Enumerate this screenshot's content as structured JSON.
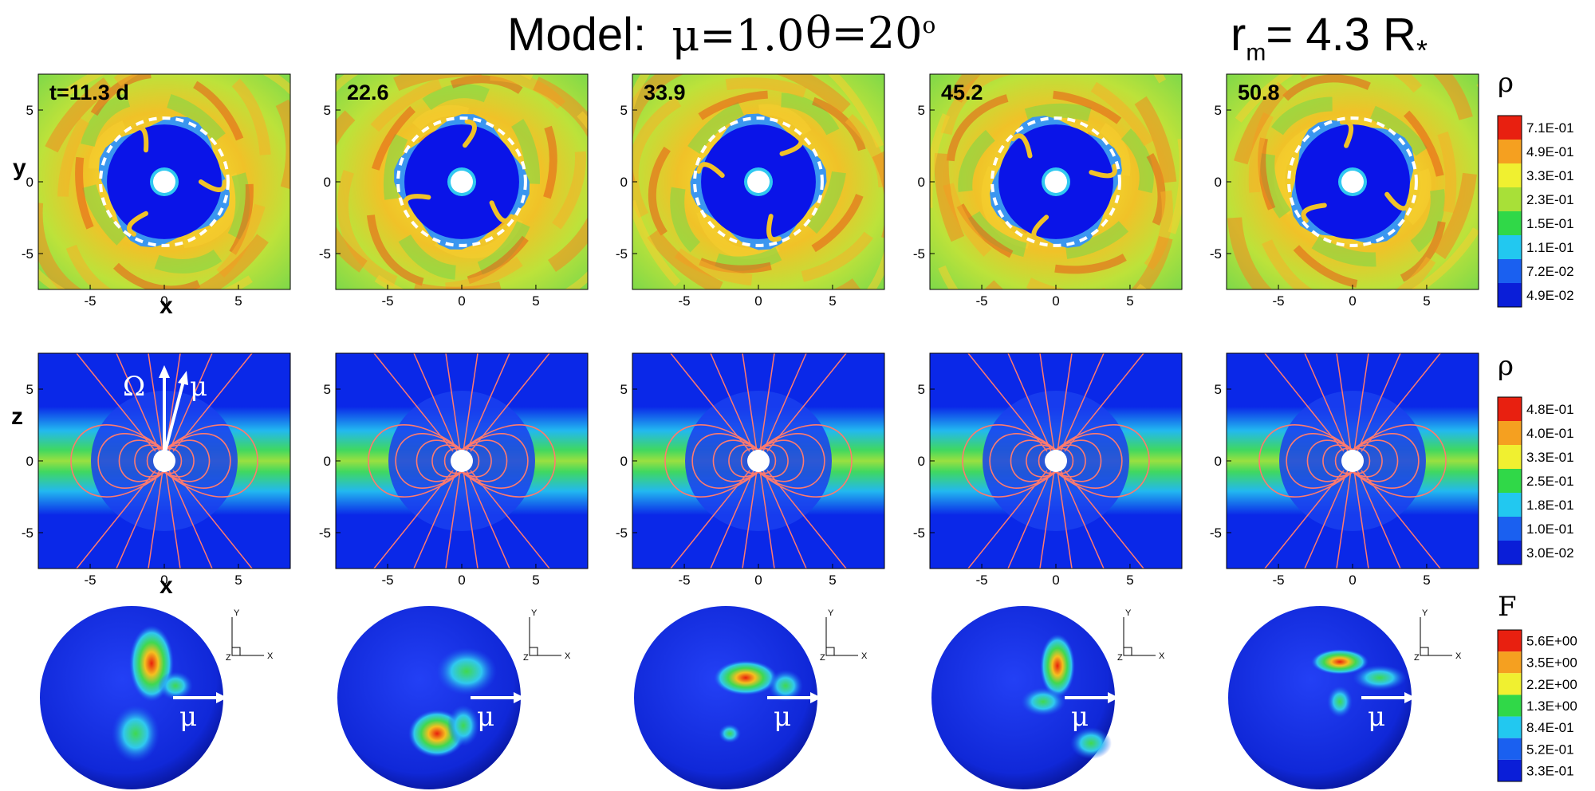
{
  "title": {
    "model_label": "Model:",
    "mu_value": "μ=1.0",
    "theta_value": "θ=20",
    "theta_degree": "o",
    "rm_label": "r",
    "rm_sub": "m",
    "rm_value": "= 4.3 R",
    "rm_star": "*"
  },
  "panel_times": [
    "t=11.3 d",
    "22.6",
    "33.9",
    "45.2",
    "50.8"
  ],
  "axes": {
    "row1_xlabel": "x",
    "row1_ylabel": "y",
    "row2_xlabel": "x",
    "row2_ylabel": "z",
    "ticks": [
      "-5",
      "0",
      "5"
    ],
    "row1_yticks": [
      "5",
      "0",
      "-5"
    ],
    "row2_yticks": [
      "5",
      "0",
      "-5"
    ],
    "xlim": [
      -8.5,
      8.5
    ],
    "ylim": [
      -7.5,
      7.5
    ],
    "zlim": [
      -7.5,
      7.5
    ]
  },
  "annotations": {
    "omega": "Ω",
    "mu": "μ",
    "triad": [
      "Y",
      "Z",
      "X"
    ]
  },
  "colorbars": [
    {
      "symbol": "ρ",
      "labels": [
        "7.1E-01",
        "4.9E-01",
        "3.3E-01",
        "2.3E-01",
        "1.5E-01",
        "1.1E-01",
        "7.2E-02",
        "4.9E-02"
      ]
    },
    {
      "symbol": "ρ",
      "labels": [
        "4.8E-01",
        "4.0E-01",
        "3.3E-01",
        "2.5E-01",
        "1.8E-01",
        "1.0E-01",
        "3.0E-02"
      ]
    },
    {
      "symbol": "F",
      "labels": [
        "5.6E+00",
        "3.5E+00",
        "2.2E+00",
        "1.3E+00",
        "8.4E-01",
        "5.2E-01",
        "3.3E-01"
      ]
    }
  ],
  "colors": {
    "low": "#0a1fe0",
    "mid": "#32d24a",
    "high": "#e83a10",
    "field_line": "#ff7a6e"
  }
}
